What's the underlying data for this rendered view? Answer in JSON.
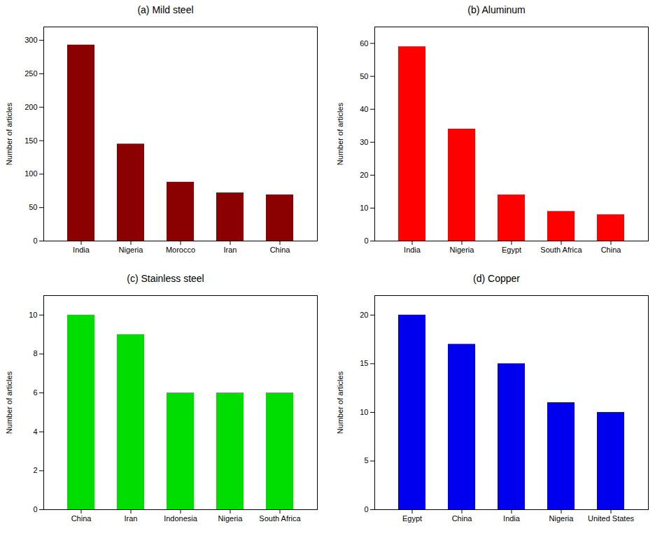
{
  "chart_data": [
    {
      "type": "bar",
      "title": "(a) Mild steel",
      "ylabel": "Number of articles",
      "categories": [
        "India",
        "Nigeria",
        "Morocco",
        "Iran",
        "China"
      ],
      "values": [
        293,
        145,
        88,
        72,
        69
      ],
      "color": "#8B0000",
      "ylim": [
        0,
        320
      ],
      "yticks": [
        0,
        50,
        100,
        150,
        200,
        250,
        300
      ],
      "grid": false
    },
    {
      "type": "bar",
      "title": "(b) Aluminum",
      "ylabel": "Number of articles",
      "categories": [
        "India",
        "Nigeria",
        "Egypt",
        "South Africa",
        "China"
      ],
      "values": [
        59,
        34,
        14,
        9,
        8
      ],
      "color": "#FF0000",
      "ylim": [
        0,
        65
      ],
      "yticks": [
        0,
        10,
        20,
        30,
        40,
        50,
        60
      ],
      "grid": false
    },
    {
      "type": "bar",
      "title": "(c) Stainless steel",
      "ylabel": "Number of articles",
      "categories": [
        "China",
        "Iran",
        "Indonesia",
        "Nigeria",
        "South Africa"
      ],
      "values": [
        10,
        9,
        6,
        6,
        6
      ],
      "color": "#00DD00",
      "ylim": [
        0,
        11
      ],
      "yticks": [
        0,
        2,
        4,
        6,
        8,
        10
      ],
      "grid": false
    },
    {
      "type": "bar",
      "title": "(d) Copper",
      "ylabel": "Number of articles",
      "categories": [
        "Egypt",
        "China",
        "India",
        "Nigeria",
        "United States"
      ],
      "values": [
        20,
        17,
        15,
        11,
        10
      ],
      "color": "#0000EE",
      "ylim": [
        0,
        22
      ],
      "yticks": [
        0,
        5,
        10,
        15,
        20
      ],
      "grid": false
    }
  ]
}
